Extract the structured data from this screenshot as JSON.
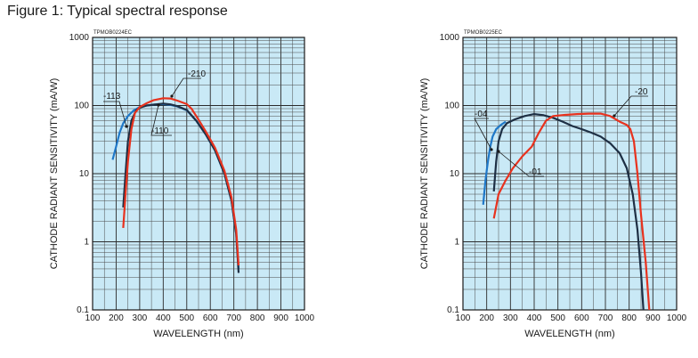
{
  "figure_title": "Figure 1: Typical spectral response",
  "chart_data": [
    {
      "type": "line",
      "code": "TPMOB0224EC",
      "xlabel": "WAVELENGTH (nm)",
      "ylabel": "CATHODE RADIANT SENSITIVITY (mA/W)",
      "xlim": [
        100,
        1000
      ],
      "ylim": [
        0.1,
        1000
      ],
      "yscale": "log",
      "grid": true,
      "x_ticks": [
        "100",
        "200",
        "300",
        "400",
        "500",
        "600",
        "700",
        "800",
        "900",
        "1000"
      ],
      "y_ticks": [
        "0.1",
        "1",
        "10",
        "100",
        "1000"
      ],
      "series": [
        {
          "name": "-113",
          "color": "#1f78c8",
          "points": [
            [
              185,
              16
            ],
            [
              200,
              25
            ],
            [
              215,
              40
            ],
            [
              230,
              55
            ],
            [
              250,
              70
            ],
            [
              275,
              85
            ],
            [
              300,
              95
            ],
            [
              330,
              100
            ],
            [
              360,
              103
            ],
            [
              400,
              105
            ],
            [
              430,
              102
            ],
            [
              460,
              97
            ],
            [
              500,
              85
            ],
            [
              540,
              60
            ],
            [
              580,
              38
            ],
            [
              620,
              22
            ],
            [
              660,
              10
            ],
            [
              690,
              4
            ],
            [
              710,
              1.3
            ],
            [
              720,
              0.4
            ]
          ]
        },
        {
          "name": "-110",
          "color": "#1e2f44",
          "points": [
            [
              230,
              3.2
            ],
            [
              240,
              10
            ],
            [
              250,
              30
            ],
            [
              265,
              60
            ],
            [
              285,
              85
            ],
            [
              300,
              93
            ],
            [
              330,
              100
            ],
            [
              360,
              103
            ],
            [
              400,
              107
            ],
            [
              430,
              104
            ],
            [
              460,
              98
            ],
            [
              500,
              86
            ],
            [
              540,
              60
            ],
            [
              580,
              38
            ],
            [
              620,
              22
            ],
            [
              660,
              10
            ],
            [
              690,
              4
            ],
            [
              710,
              1.3
            ],
            [
              720,
              0.35
            ]
          ]
        },
        {
          "name": "-210",
          "color": "#e8321e",
          "points": [
            [
              230,
              1.6
            ],
            [
              240,
              5
            ],
            [
              250,
              15
            ],
            [
              265,
              45
            ],
            [
              280,
              78
            ],
            [
              300,
              95
            ],
            [
              330,
              108
            ],
            [
              360,
              120
            ],
            [
              400,
              128
            ],
            [
              430,
              127
            ],
            [
              460,
              118
            ],
            [
              500,
              105
            ],
            [
              520,
              90
            ],
            [
              550,
              62
            ],
            [
              580,
              42
            ],
            [
              620,
              24
            ],
            [
              660,
              11
            ],
            [
              690,
              4.5
            ],
            [
              710,
              1.5
            ],
            [
              720,
              0.45
            ]
          ]
        }
      ],
      "annotations": [
        "-113",
        "-210",
        "-110"
      ]
    },
    {
      "type": "line",
      "code": "TPMOB0225EC",
      "xlabel": "WAVELENGTH (nm)",
      "ylabel": "CATHODE RADIANT SENSITIVITY (mA/W)",
      "xlim": [
        100,
        1000
      ],
      "ylim": [
        0.1,
        1000
      ],
      "yscale": "log",
      "grid": true,
      "x_ticks": [
        "100",
        "200",
        "300",
        "400",
        "500",
        "600",
        "700",
        "800",
        "900",
        "1000"
      ],
      "y_ticks": [
        "0.1",
        "1",
        "10",
        "100",
        "1000"
      ],
      "series": [
        {
          "name": "-04",
          "color": "#1f78c8",
          "points": [
            [
              185,
              3.5
            ],
            [
              195,
              8
            ],
            [
              205,
              15
            ],
            [
              215,
              25
            ],
            [
              225,
              35
            ],
            [
              240,
              45
            ],
            [
              260,
              52
            ],
            [
              280,
              58
            ]
          ]
        },
        {
          "name": "-01",
          "color": "#1e2f44",
          "points": [
            [
              230,
              5.5
            ],
            [
              240,
              15
            ],
            [
              250,
              30
            ],
            [
              265,
              45
            ],
            [
              285,
              55
            ],
            [
              320,
              63
            ],
            [
              360,
              70
            ],
            [
              400,
              75
            ],
            [
              440,
              72
            ],
            [
              480,
              66
            ],
            [
              520,
              58
            ],
            [
              560,
              50
            ],
            [
              600,
              45
            ],
            [
              640,
              40
            ],
            [
              680,
              35
            ],
            [
              720,
              28
            ],
            [
              760,
              20
            ],
            [
              790,
              12
            ],
            [
              815,
              5
            ],
            [
              835,
              1.5
            ],
            [
              850,
              0.35
            ],
            [
              860,
              0.1
            ]
          ]
        },
        {
          "name": "-20",
          "color": "#e8321e",
          "points": [
            [
              230,
              2.2
            ],
            [
              250,
              5
            ],
            [
              280,
              8
            ],
            [
              310,
              12
            ],
            [
              350,
              18
            ],
            [
              390,
              25
            ],
            [
              420,
              40
            ],
            [
              450,
              60
            ],
            [
              480,
              70
            ],
            [
              530,
              73
            ],
            [
              580,
              75
            ],
            [
              630,
              76
            ],
            [
              680,
              76
            ],
            [
              720,
              70
            ],
            [
              760,
              58
            ],
            [
              790,
              52
            ],
            [
              805,
              45
            ],
            [
              820,
              30
            ],
            [
              835,
              10
            ],
            [
              850,
              2.5
            ],
            [
              870,
              0.5
            ],
            [
              885,
              0.1
            ]
          ]
        }
      ],
      "annotations": [
        "-04",
        "-01",
        "-20"
      ]
    }
  ]
}
